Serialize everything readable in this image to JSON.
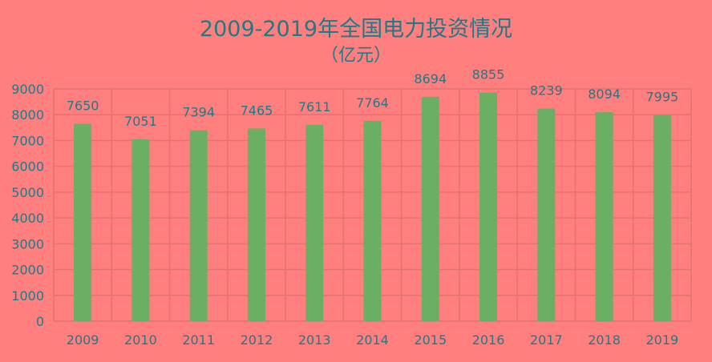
{
  "chart_data": {
    "type": "bar",
    "title": "2009-2019年全国电力投资情况",
    "subtitle": "（亿元）",
    "xlabel": "",
    "ylabel": "",
    "categories": [
      "2009",
      "2010",
      "2011",
      "2012",
      "2013",
      "2014",
      "2015",
      "2016",
      "2017",
      "2018",
      "2019"
    ],
    "values": [
      7650,
      7051,
      7394,
      7465,
      7611,
      7764,
      8694,
      8855,
      8239,
      8094,
      7995
    ],
    "ylim": [
      0,
      9000
    ],
    "yticks": [
      0,
      1000,
      2000,
      3000,
      4000,
      5000,
      6000,
      7000,
      8000,
      9000
    ],
    "grid": true,
    "legend": "none",
    "colors": {
      "background": "#ff7f7f",
      "bar": "#6aaf63",
      "grid": "#e47272",
      "text": "#1f7a86"
    }
  }
}
